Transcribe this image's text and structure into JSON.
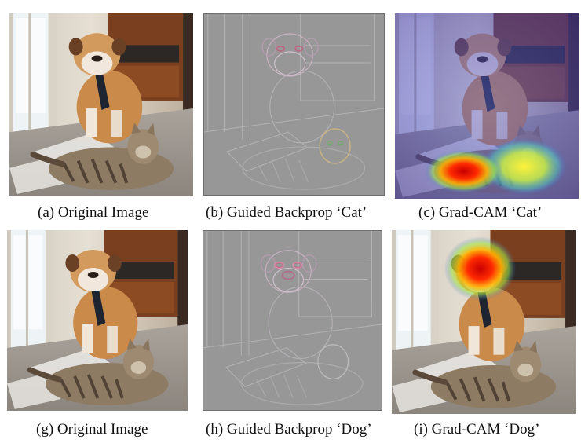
{
  "figure": {
    "captions": [
      "(a) Original Image",
      "(b) Guided Backprop ‘Cat’",
      "(c) Grad-CAM ‘Cat’",
      "(g) Original Image",
      "(h) Guided Backprop ‘Dog’",
      "(i) Grad-CAM ‘Dog’"
    ]
  },
  "colors": {
    "floor": "#b9b3ac",
    "wall": "#d8d0c4",
    "cabinet": "#7a3f1f",
    "dog_fur": "#c98a4a",
    "cat_fur": "#8e7b63",
    "guided_bg": "#979797",
    "heat_red": "#e00000",
    "heat_yellow": "#f2e12a",
    "heat_blue": "#3b4bbf"
  }
}
